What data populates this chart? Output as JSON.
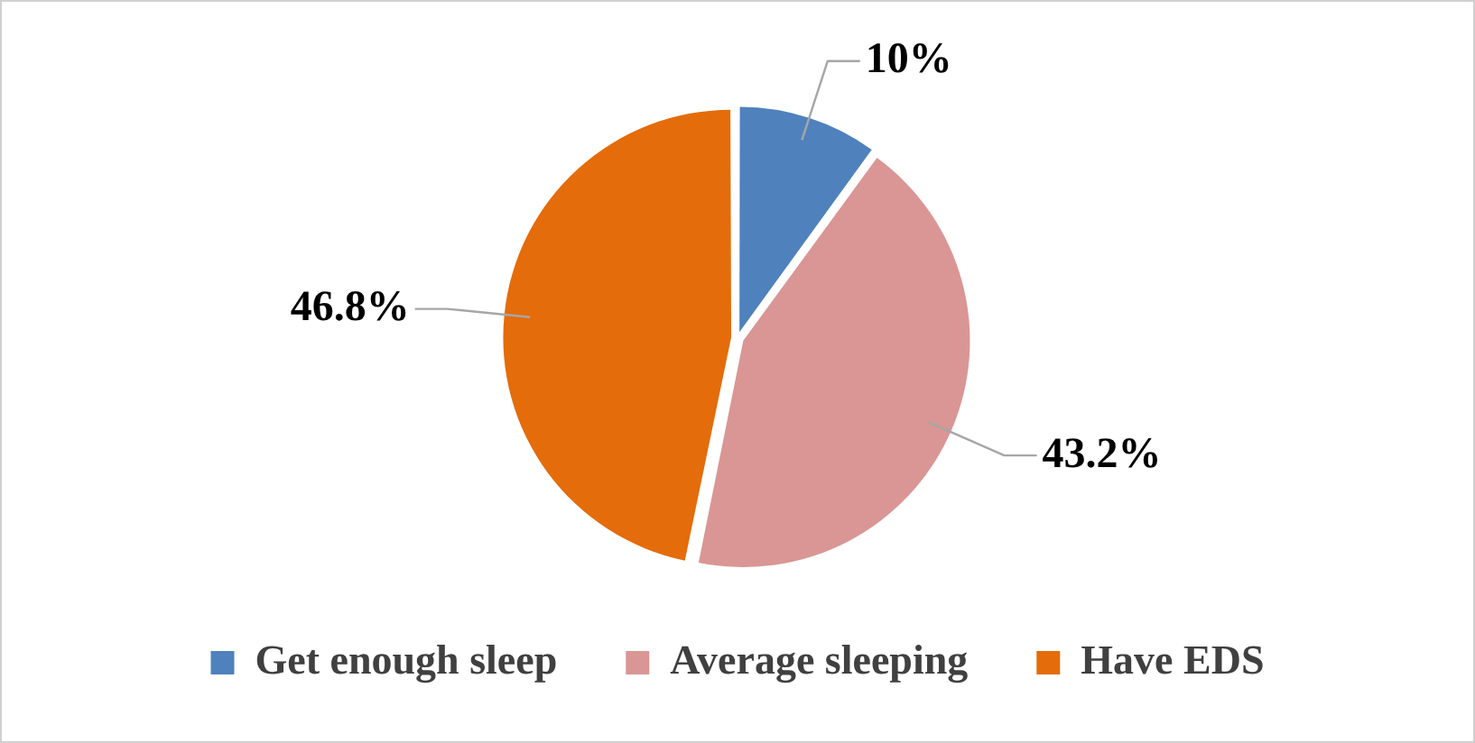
{
  "chart_data": {
    "type": "pie",
    "categories": [
      "Get enough sleep",
      "Average sleeping",
      "Have EDS"
    ],
    "values": [
      10,
      43.2,
      46.8
    ],
    "colors": [
      "#4f81bd",
      "#d99694",
      "#e46c0a"
    ],
    "value_labels": [
      "10%",
      "43.2%",
      "46.8%"
    ],
    "legend": "bottom"
  }
}
